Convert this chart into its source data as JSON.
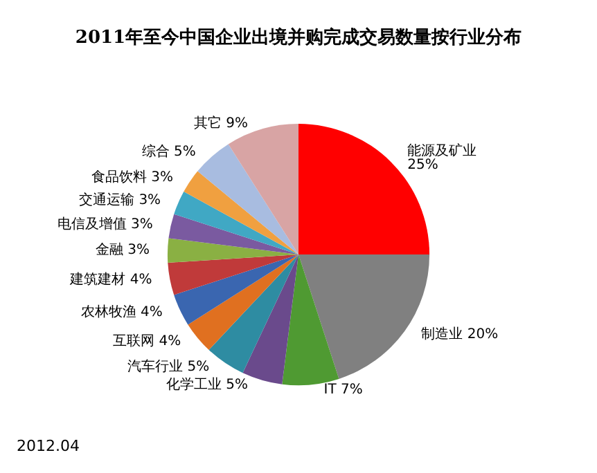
{
  "chart_data": {
    "type": "pie",
    "title": "2011年至今中国企业出境并购完成交易数量按行业分布",
    "categories": [
      "能源及矿业",
      "制造业",
      "IT",
      "化学工业",
      "汽车行业",
      "互联网",
      "农林牧渔",
      "建筑建材",
      "金融",
      "电信及增值",
      "交通运输",
      "食品饮料",
      "综合",
      "其它"
    ],
    "values": [
      25,
      20,
      7,
      5,
      5,
      4,
      4,
      4,
      3,
      3,
      3,
      3,
      5,
      9
    ],
    "colors": [
      "#ff0000",
      "#808080",
      "#4f9a32",
      "#6a4a8c",
      "#2e8ca2",
      "#e07020",
      "#3a66b0",
      "#c03a3a",
      "#8ab043",
      "#7a5aa0",
      "#40a8c4",
      "#f0a040",
      "#a8bce0",
      "#d8a4a4"
    ],
    "value_labels": [
      "25%",
      "20%",
      "7%",
      "5%",
      "5%",
      "4%",
      "4%",
      "4%",
      "3%",
      "3%",
      "3%",
      "3%",
      "5%",
      "9%"
    ],
    "legend": false,
    "annotations": [
      "2012.04"
    ]
  }
}
